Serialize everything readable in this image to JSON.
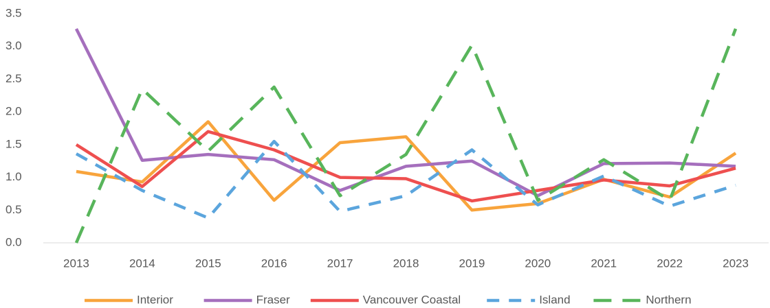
{
  "chart_data": {
    "type": "line",
    "categories": [
      "2013",
      "2014",
      "2015",
      "2016",
      "2017",
      "2018",
      "2019",
      "2020",
      "2021",
      "2022",
      "2023"
    ],
    "series": [
      {
        "name": "Interior",
        "color": "#f8a43c",
        "dash": "solid",
        "values": [
          1.09,
          0.93,
          1.85,
          0.65,
          1.53,
          1.62,
          0.5,
          0.6,
          0.97,
          0.7,
          1.37
        ]
      },
      {
        "name": "Fraser",
        "color": "#a56fbd",
        "dash": "solid",
        "values": [
          3.27,
          1.26,
          1.35,
          1.27,
          0.8,
          1.17,
          1.25,
          0.72,
          1.21,
          1.22,
          1.17
        ]
      },
      {
        "name": "Vancouver Coastal",
        "color": "#ee4f4f",
        "dash": "solid",
        "values": [
          1.5,
          0.86,
          1.7,
          1.42,
          1.0,
          0.98,
          0.64,
          0.8,
          0.96,
          0.87,
          1.14
        ]
      },
      {
        "name": "Island",
        "color": "#5ba5dd",
        "dash": "dashed",
        "values": [
          1.36,
          0.8,
          0.38,
          1.55,
          0.48,
          0.72,
          1.42,
          0.58,
          1.02,
          0.56,
          0.88
        ]
      },
      {
        "name": "Northern",
        "color": "#58b55b",
        "dash": "longdash",
        "values": [
          0.0,
          2.35,
          1.4,
          2.38,
          0.72,
          1.35,
          3.02,
          0.65,
          1.27,
          0.65,
          3.27
        ]
      }
    ],
    "ylim": [
      0,
      3.5
    ],
    "yticks": [
      {
        "value": 0,
        "label": "0.0"
      },
      0.5,
      {
        "value": 1,
        "label": "1.0"
      },
      1.5,
      {
        "value": 2,
        "label": "2.0"
      },
      2.5,
      {
        "value": 3,
        "label": "3.0"
      },
      3.5
    ],
    "grid": false,
    "legend": "bottom"
  }
}
